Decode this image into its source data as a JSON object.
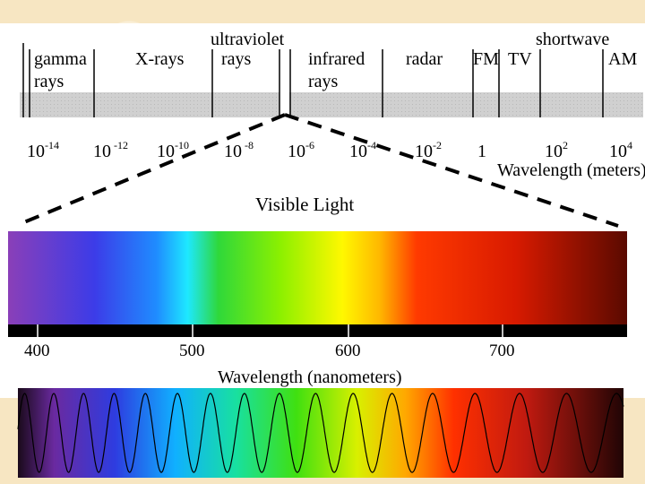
{
  "em_spectrum": {
    "band_labels": {
      "gamma": [
        "gamma",
        "rays"
      ],
      "xrays": "X-rays",
      "ultraviolet": [
        "ultraviolet",
        "rays"
      ],
      "infrared": [
        "infrared",
        "rays"
      ],
      "radar": "radar",
      "fm": "FM",
      "tv": "TV",
      "shortwave": "shortwave",
      "am": "AM"
    },
    "ticks": [
      {
        "base": "10",
        "exp": "-14"
      },
      {
        "base": "10",
        "exp": " -12"
      },
      {
        "base": "10",
        "exp": "-10"
      },
      {
        "base": "10",
        "exp": " -8"
      },
      {
        "base": "10",
        "exp": "-6"
      },
      {
        "base": "10",
        "exp": "-4"
      },
      {
        "base": "10",
        "exp": "-2"
      },
      {
        "base": "1",
        "exp": ""
      },
      {
        "base": "10",
        "exp": "2"
      },
      {
        "base": "10",
        "exp": "4"
      }
    ],
    "axis_label": "Wavelength (meters)"
  },
  "visible": {
    "title": "Visible Light",
    "ticks": [
      "400",
      "500",
      "600",
      "700"
    ],
    "axis_label": "Wavelength (nanometers)"
  },
  "colors": {
    "band_gray": "#c8c8c8",
    "spectrum_stops": [
      "#7f3fb0",
      "#3b3fe0",
      "#1aa0ff",
      "#16e0ff",
      "#3ddc2e",
      "#9cf000",
      "#ffff00",
      "#ffb000",
      "#ff2a00",
      "#c01a00",
      "#5a0a00"
    ]
  }
}
